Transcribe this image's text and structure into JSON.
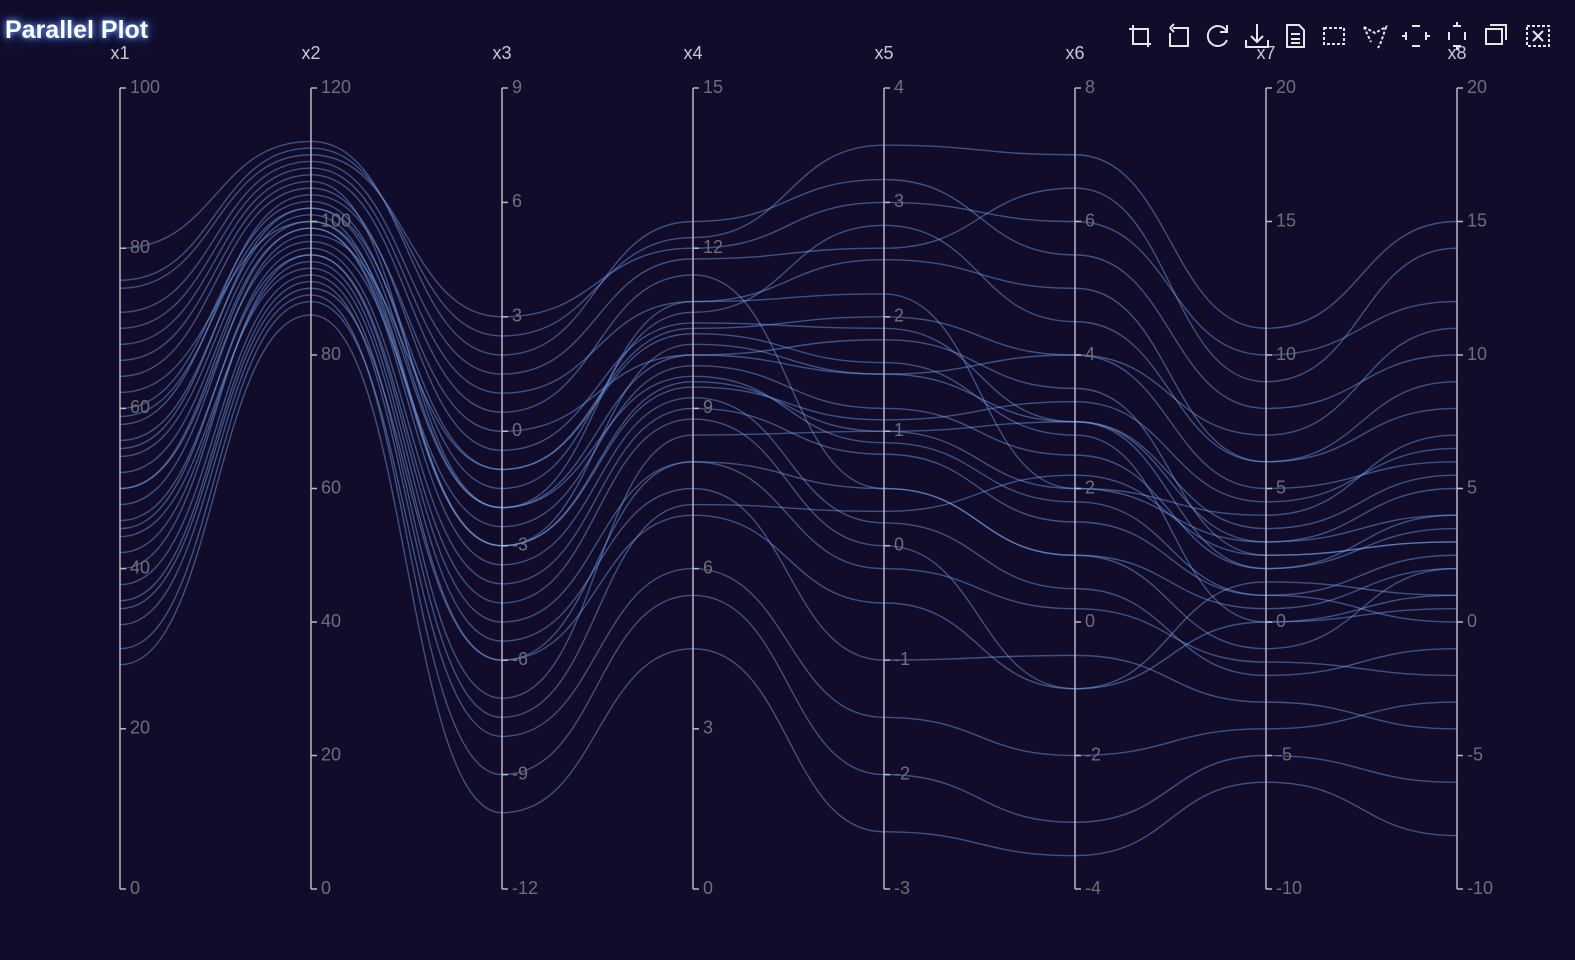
{
  "chart_data": {
    "type": "parallel",
    "title": "Parallel Plot",
    "color": "#7aa8f0",
    "axes": [
      {
        "name": "x1",
        "lim": [
          0,
          100
        ],
        "ticks": [
          0,
          20,
          40,
          60,
          80,
          100
        ]
      },
      {
        "name": "x2",
        "lim": [
          0,
          120
        ],
        "ticks": [
          0,
          20,
          40,
          60,
          80,
          100,
          120
        ]
      },
      {
        "name": "x3",
        "lim": [
          -12,
          9
        ],
        "ticks": [
          -12,
          -9,
          -6,
          -3,
          0,
          3,
          6,
          9
        ]
      },
      {
        "name": "x4",
        "lim": [
          0,
          15
        ],
        "ticks": [
          0,
          3,
          6,
          9,
          12,
          15
        ]
      },
      {
        "name": "x5",
        "lim": [
          -3,
          4
        ],
        "ticks": [
          -3,
          -2,
          -1,
          0,
          1,
          2,
          3,
          4
        ]
      },
      {
        "name": "x6",
        "lim": [
          -4,
          8
        ],
        "ticks": [
          -4,
          -2,
          0,
          2,
          4,
          6,
          8
        ]
      },
      {
        "name": "x7",
        "lim": [
          -10,
          20
        ],
        "ticks": [
          -10,
          -5,
          0,
          5,
          10,
          15,
          20
        ]
      },
      {
        "name": "x8",
        "lim": [
          -10,
          20
        ],
        "ticks": [
          -10,
          -5,
          0,
          5,
          10,
          15,
          20
        ]
      }
    ],
    "data": [
      [
        55,
        102,
        -2,
        10,
        1.5,
        3,
        2,
        4
      ],
      [
        40,
        95,
        -5,
        8,
        0.5,
        1,
        -1,
        2
      ],
      [
        70,
        108,
        1,
        11,
        2.5,
        5,
        6,
        9
      ],
      [
        62,
        100,
        -3,
        9.5,
        1,
        2,
        3,
        5
      ],
      [
        35,
        90,
        -6,
        7,
        -0.5,
        -1,
        0,
        1
      ],
      [
        48,
        98,
        -1,
        10.5,
        2,
        4,
        5,
        6
      ],
      [
        75,
        110,
        3,
        12,
        3,
        6,
        10,
        12
      ],
      [
        30,
        88,
        -8,
        6,
        -1.5,
        -2,
        -4,
        -3
      ],
      [
        58,
        104,
        0,
        10,
        1.8,
        3.5,
        2.5,
        3
      ],
      [
        45,
        96,
        -4,
        9,
        0.8,
        1.5,
        1,
        0
      ],
      [
        66,
        106,
        -2,
        11,
        2.2,
        2,
        4,
        7
      ],
      [
        52,
        99,
        -3.5,
        9.2,
        0.2,
        0.5,
        -2,
        -1
      ],
      [
        38,
        92,
        -7,
        8.5,
        1,
        3,
        3,
        4
      ],
      [
        80,
        112,
        2,
        12.5,
        3.2,
        5.5,
        8,
        10
      ],
      [
        42,
        94,
        -5.5,
        7.5,
        -1,
        -0.5,
        -3,
        -4
      ],
      [
        60,
        103,
        -1.5,
        10.8,
        2.8,
        4.5,
        6,
        8
      ],
      [
        50,
        97,
        -2.5,
        9.8,
        1.2,
        2.5,
        2,
        3.5
      ],
      [
        68,
        107,
        0.5,
        11.5,
        0.5,
        1,
        0.5,
        2
      ],
      [
        33,
        89,
        -9,
        5.5,
        -2,
        -3,
        -5,
        -6
      ],
      [
        56,
        101,
        -3,
        10.2,
        1.5,
        4,
        7,
        11
      ],
      [
        46,
        95,
        -4.5,
        8.8,
        0,
        -1,
        1.5,
        1
      ],
      [
        72,
        109,
        1.5,
        11.8,
        2.6,
        6.5,
        9,
        14
      ],
      [
        28,
        86,
        -10,
        4.5,
        -2.5,
        -3.5,
        -6,
        -8
      ],
      [
        64,
        105,
        -0.5,
        10.6,
        1.9,
        3,
        3.5,
        5.5
      ],
      [
        54,
        100,
        -2,
        9.6,
        0.9,
        1.8,
        1,
        2.5
      ],
      [
        44,
        93,
        -6,
        8,
        -0.2,
        0.2,
        -1.5,
        -2
      ],
      [
        76,
        111,
        2.5,
        12.2,
        3.5,
        7,
        11,
        15
      ],
      [
        36,
        91,
        -7.5,
        7.2,
        0.3,
        2.2,
        2.5,
        3
      ],
      [
        59,
        102,
        -1,
        10.4,
        1.6,
        2.8,
        0,
        0.5
      ],
      [
        50,
        99,
        -3,
        9.4,
        1.1,
        3.3,
        4.5,
        6.5
      ]
    ]
  }
}
